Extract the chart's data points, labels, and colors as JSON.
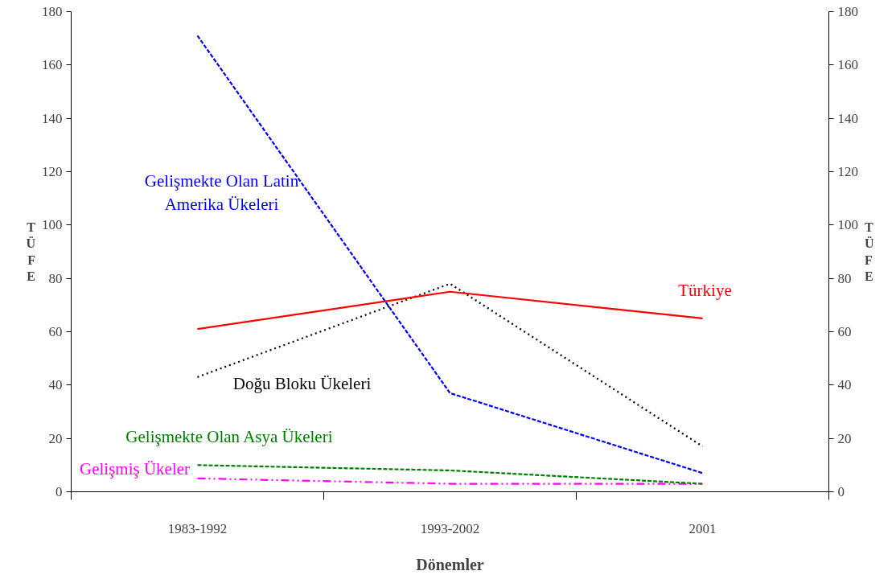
{
  "chart_data": {
    "type": "line",
    "xlabel": "Dönemler",
    "ylabel": "TÜFE",
    "y2label": "TÜFE",
    "categories": [
      "1983-1992",
      "1993-2002",
      "2001"
    ],
    "series": [
      {
        "name": "Gelişmekte Olan Latin\nAmerika Ükeleri",
        "color": "#0000ff",
        "line_style": "dashed",
        "values": [
          171,
          37,
          7
        ]
      },
      {
        "name": "Türkiye",
        "color": "#ff0000",
        "line_style": "solid",
        "values": [
          61,
          75,
          65
        ]
      },
      {
        "name": "Doğu Bloku Ükeleri",
        "color": "#000000",
        "line_style": "dotted",
        "values": [
          43,
          78,
          17
        ]
      },
      {
        "name": "Gelişmekte Olan Asya Ükeleri",
        "color": "#008000",
        "line_style": "dashed",
        "values": [
          10,
          8,
          3
        ]
      },
      {
        "name": "Gelişmiş Ükeler",
        "color": "#ff00ff",
        "line_style": "dashdot",
        "values": [
          5,
          3,
          3
        ]
      }
    ],
    "ylim": [
      0,
      180
    ],
    "yticks": [
      0,
      20,
      40,
      60,
      80,
      100,
      120,
      140,
      160,
      180
    ],
    "y2lim": [
      0,
      180
    ],
    "y2ticks": [
      0,
      20,
      40,
      60,
      80,
      100,
      120,
      140,
      160,
      180
    ],
    "grid": false,
    "marker": "none"
  }
}
